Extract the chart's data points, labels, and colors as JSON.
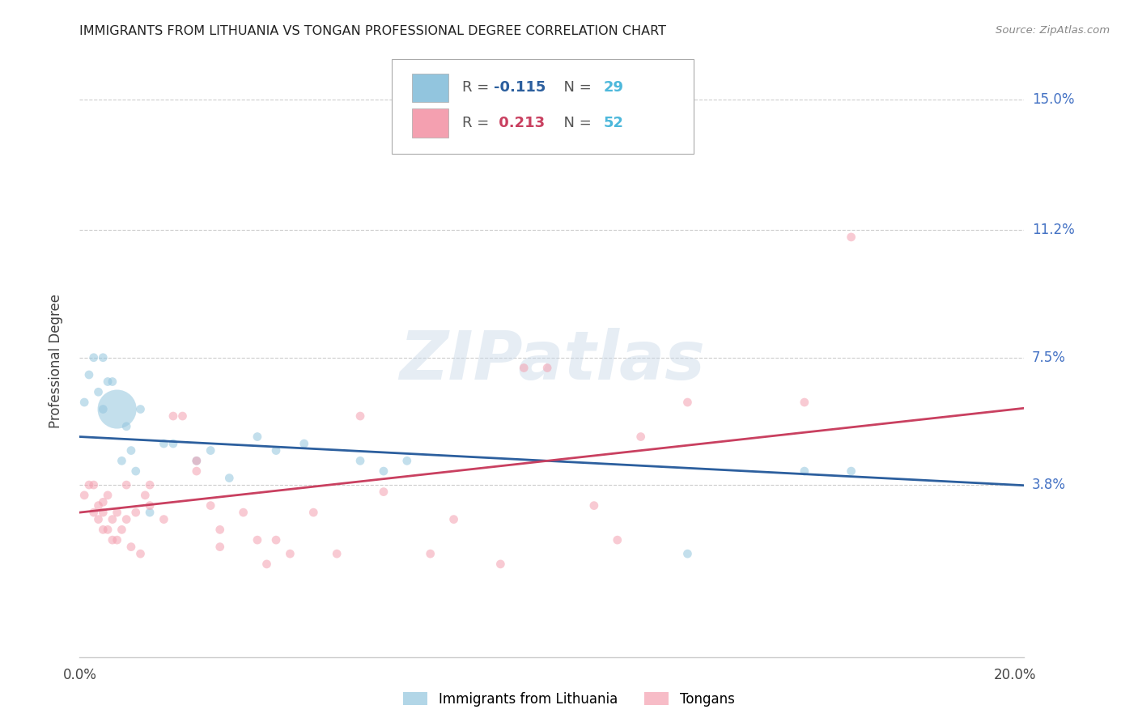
{
  "title": "IMMIGRANTS FROM LITHUANIA VS TONGAN PROFESSIONAL DEGREE CORRELATION CHART",
  "source": "Source: ZipAtlas.com",
  "ylabel": "Professional Degree",
  "xlim": [
    0.0,
    0.202
  ],
  "ylim": [
    -0.012,
    0.16
  ],
  "ytick_vals": [
    0.038,
    0.075,
    0.112,
    0.15
  ],
  "ytick_labels": [
    "3.8%",
    "7.5%",
    "11.2%",
    "15.0%"
  ],
  "xtick_vals": [
    0.0,
    0.05,
    0.1,
    0.15,
    0.2
  ],
  "xtick_labels": [
    "0.0%",
    "",
    "",
    "",
    "20.0%"
  ],
  "r_blue": "-0.115",
  "n_blue": "29",
  "r_pink": "0.213",
  "n_pink": "52",
  "blue_dot_color": "#92c5de",
  "pink_dot_color": "#f4a0b0",
  "blue_line_color": "#2c5f9e",
  "pink_line_color": "#c94060",
  "right_label_color": "#4472c4",
  "grid_color": "#cccccc",
  "blue_x": [
    0.001,
    0.002,
    0.003,
    0.004,
    0.005,
    0.005,
    0.006,
    0.007,
    0.008,
    0.009,
    0.01,
    0.011,
    0.012,
    0.013,
    0.015,
    0.018,
    0.02,
    0.025,
    0.028,
    0.032,
    0.038,
    0.042,
    0.048,
    0.06,
    0.065,
    0.07,
    0.13,
    0.155,
    0.165
  ],
  "blue_y": [
    0.062,
    0.07,
    0.075,
    0.065,
    0.075,
    0.06,
    0.068,
    0.068,
    0.06,
    0.045,
    0.055,
    0.048,
    0.042,
    0.06,
    0.03,
    0.05,
    0.05,
    0.045,
    0.048,
    0.04,
    0.052,
    0.048,
    0.05,
    0.045,
    0.042,
    0.045,
    0.018,
    0.042,
    0.042
  ],
  "blue_sizes": [
    60,
    60,
    60,
    60,
    60,
    60,
    60,
    60,
    1200,
    60,
    60,
    60,
    60,
    60,
    60,
    60,
    60,
    60,
    60,
    60,
    60,
    60,
    60,
    60,
    60,
    60,
    60,
    60,
    60
  ],
  "pink_x": [
    0.001,
    0.002,
    0.003,
    0.003,
    0.004,
    0.004,
    0.005,
    0.005,
    0.005,
    0.006,
    0.006,
    0.007,
    0.007,
    0.008,
    0.008,
    0.009,
    0.01,
    0.01,
    0.011,
    0.012,
    0.013,
    0.014,
    0.015,
    0.015,
    0.018,
    0.02,
    0.022,
    0.025,
    0.025,
    0.028,
    0.03,
    0.03,
    0.035,
    0.038,
    0.04,
    0.042,
    0.045,
    0.05,
    0.055,
    0.06,
    0.065,
    0.075,
    0.08,
    0.09,
    0.095,
    0.1,
    0.11,
    0.115,
    0.12,
    0.13,
    0.155,
    0.165
  ],
  "pink_y": [
    0.035,
    0.038,
    0.03,
    0.038,
    0.028,
    0.032,
    0.03,
    0.025,
    0.033,
    0.025,
    0.035,
    0.022,
    0.028,
    0.022,
    0.03,
    0.025,
    0.028,
    0.038,
    0.02,
    0.03,
    0.018,
    0.035,
    0.038,
    0.032,
    0.028,
    0.058,
    0.058,
    0.042,
    0.045,
    0.032,
    0.025,
    0.02,
    0.03,
    0.022,
    0.015,
    0.022,
    0.018,
    0.03,
    0.018,
    0.058,
    0.036,
    0.018,
    0.028,
    0.015,
    0.072,
    0.072,
    0.032,
    0.022,
    0.052,
    0.062,
    0.062,
    0.11
  ],
  "pink_sizes": [
    60,
    60,
    60,
    60,
    60,
    60,
    60,
    60,
    60,
    60,
    60,
    60,
    60,
    60,
    60,
    60,
    60,
    60,
    60,
    60,
    60,
    60,
    60,
    60,
    60,
    60,
    60,
    60,
    60,
    60,
    60,
    60,
    60,
    60,
    60,
    60,
    60,
    60,
    60,
    60,
    60,
    60,
    60,
    60,
    60,
    60,
    60,
    60,
    60,
    60,
    60,
    60
  ]
}
